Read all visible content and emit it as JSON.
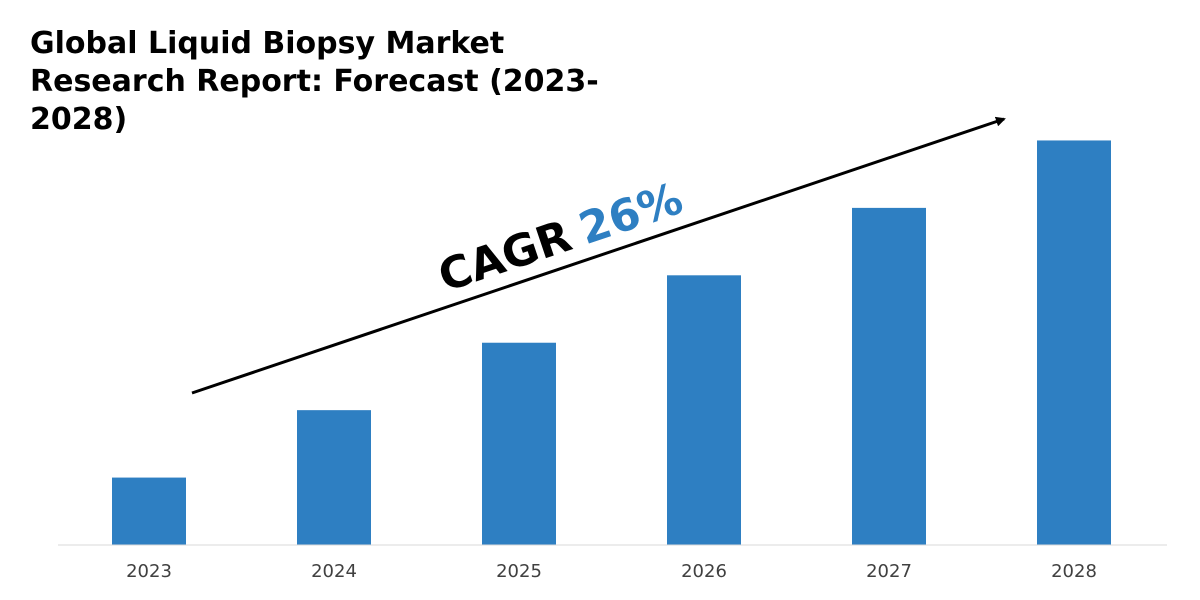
{
  "chart_data": {
    "type": "bar",
    "title": "Global Liquid Biopsy Market Research Report: Forecast (2023-2028)",
    "categories": [
      "2023",
      "2024",
      "2025",
      "2026",
      "2027",
      "2028"
    ],
    "values": [
      1,
      2,
      3,
      4,
      5,
      6
    ],
    "ylim": [
      0,
      6.6
    ],
    "xlabel": "",
    "ylabel": "",
    "grid": false,
    "bar_color": "#2E7FC2",
    "annotation": {
      "label": "CAGR",
      "value": "26%",
      "label_color": "#000000",
      "value_color": "#2E7FC2"
    }
  }
}
